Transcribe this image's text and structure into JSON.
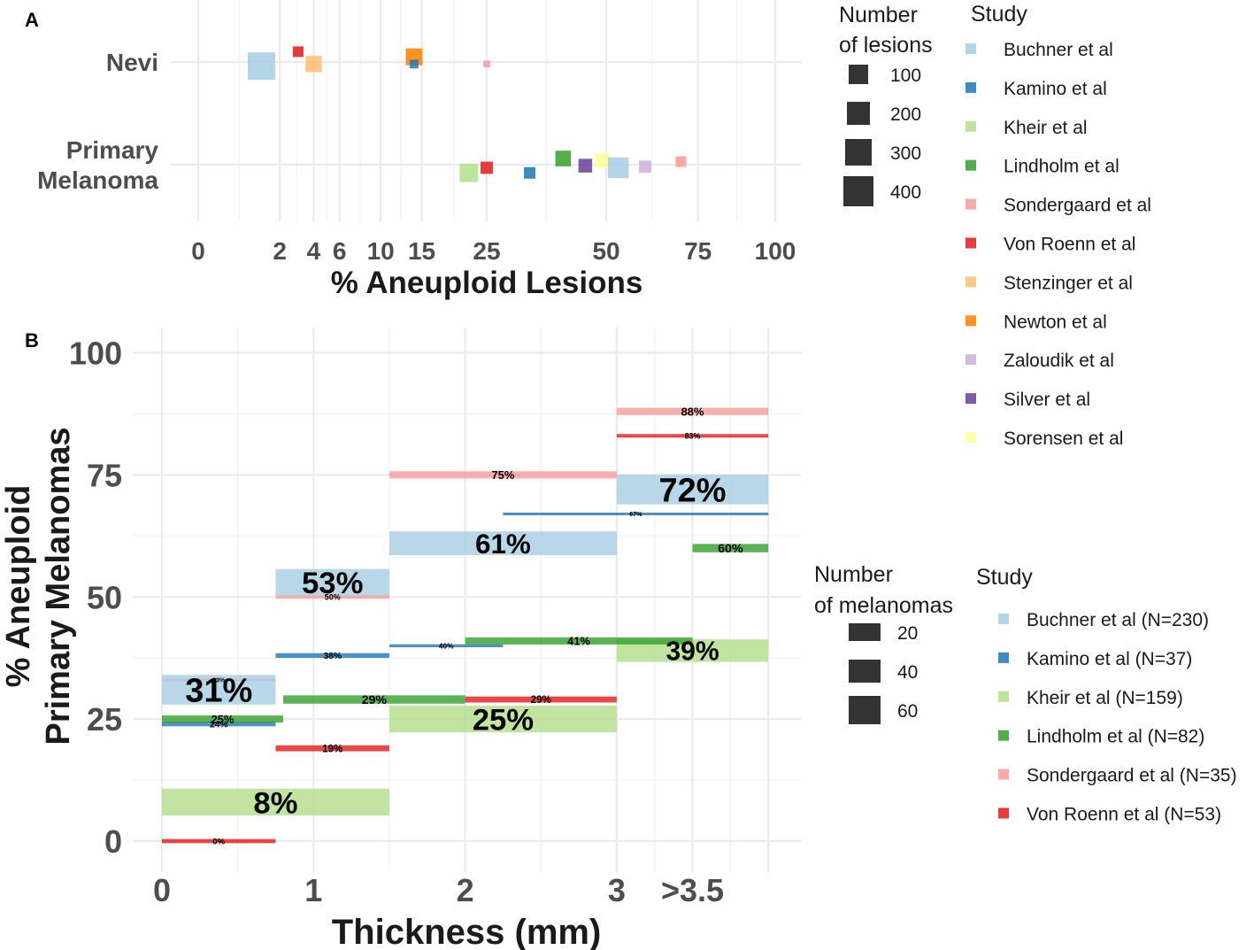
{
  "chart_data": [
    {
      "panel": "A",
      "type": "scatter",
      "xlabel": "% Aneuploid Lesions",
      "ylabel": "",
      "x_scale": "sqrt",
      "xlim": [
        0,
        100
      ],
      "x_ticks": [
        0,
        2,
        4,
        6,
        10,
        15,
        25,
        50,
        75,
        100
      ],
      "x_tick_labels": [
        "0",
        "2",
        "4",
        "6",
        "10",
        "15",
        "25",
        "50",
        "75",
        "100"
      ],
      "categories": [
        "Nevi",
        "Primary Melanoma"
      ],
      "category_labels": [
        [
          "Nevi"
        ],
        [
          "Primary",
          "Melanoma"
        ]
      ],
      "size_legend": {
        "title": [
          "Number",
          "of lesions"
        ],
        "values": [
          100,
          200,
          300,
          400
        ],
        "labels": [
          "100",
          "200",
          "300",
          "400"
        ]
      },
      "color_legend": {
        "title": "Study",
        "items": [
          {
            "name": "Buchner et al",
            "color": "#a6cee3"
          },
          {
            "name": "Kamino et al",
            "color": "#1f78b4"
          },
          {
            "name": "Kheir et al",
            "color": "#b2df8a"
          },
          {
            "name": "Lindholm et al",
            "color": "#33a02c"
          },
          {
            "name": "Sondergaard et al",
            "color": "#fb9a99"
          },
          {
            "name": "Von Roenn et al",
            "color": "#e31a1c"
          },
          {
            "name": "Stenzinger et al",
            "color": "#fdbf6f"
          },
          {
            "name": "Newton et al",
            "color": "#ff7f00"
          },
          {
            "name": "Zaloudik et al",
            "color": "#cab2d6"
          },
          {
            "name": "Silver et al",
            "color": "#6a3d9a"
          },
          {
            "name": "Sorensen et al",
            "color": "#ffff99"
          }
        ]
      },
      "points": [
        {
          "study": "Buchner et al",
          "category": "Nevi",
          "x": 1.2,
          "n": 400,
          "offset": -0.04
        },
        {
          "study": "Von Roenn et al",
          "category": "Nevi",
          "x": 3.0,
          "n": 60,
          "offset": 0.1
        },
        {
          "study": "Stenzinger et al",
          "category": "Nevi",
          "x": 4.0,
          "n": 140,
          "offset": -0.02
        },
        {
          "study": "Newton et al",
          "category": "Nevi",
          "x": 14.0,
          "n": 150,
          "offset": 0.05
        },
        {
          "study": "Kamino et al",
          "category": "Nevi",
          "x": 14.0,
          "n": 40,
          "offset": -0.02
        },
        {
          "study": "Sondergaard et al",
          "category": "Nevi",
          "x": 25.0,
          "n": 25,
          "offset": -0.02
        },
        {
          "study": "Kheir et al",
          "category": "Primary Melanoma",
          "x": 22.0,
          "n": 180,
          "offset": -0.08
        },
        {
          "study": "Von Roenn et al",
          "category": "Primary Melanoma",
          "x": 25.0,
          "n": 80,
          "offset": -0.03
        },
        {
          "study": "Kamino et al",
          "category": "Primary Melanoma",
          "x": 33.0,
          "n": 70,
          "offset": -0.08
        },
        {
          "study": "Lindholm et al",
          "category": "Primary Melanoma",
          "x": 40.0,
          "n": 130,
          "offset": 0.06
        },
        {
          "study": "Silver et al",
          "category": "Primary Melanoma",
          "x": 45.0,
          "n": 100,
          "offset": -0.01
        },
        {
          "study": "Sorensen et al",
          "category": "Primary Melanoma",
          "x": 49.0,
          "n": 110,
          "offset": 0.04
        },
        {
          "study": "Buchner et al",
          "category": "Primary Melanoma",
          "x": 53.0,
          "n": 230,
          "offset": -0.03
        },
        {
          "study": "Zaloudik et al",
          "category": "Primary Melanoma",
          "x": 60.0,
          "n": 80,
          "offset": -0.02
        },
        {
          "study": "Sondergaard et al",
          "category": "Primary Melanoma",
          "x": 70.0,
          "n": 60,
          "offset": 0.03
        }
      ]
    },
    {
      "panel": "B",
      "type": "bar",
      "xlabel": "Thickness (mm)",
      "ylabel": [
        "% Aneuploid",
        "Primary Melanomas"
      ],
      "xlim": [
        0,
        4
      ],
      "ylim": [
        -5,
        105
      ],
      "x_ticks": [
        0,
        1,
        2,
        3,
        3.5
      ],
      "x_tick_labels": [
        "0",
        "1",
        "2",
        "3",
        ">3.5"
      ],
      "y_ticks": [
        0,
        25,
        50,
        75,
        100
      ],
      "y_tick_labels": [
        "0",
        "25",
        "50",
        "75",
        "100"
      ],
      "size_legend": {
        "title": [
          "Number",
          "of melanomas"
        ],
        "values": [
          20,
          40,
          60
        ],
        "labels": [
          "20",
          "40",
          "60"
        ]
      },
      "color_legend": {
        "title": "Study",
        "items": [
          {
            "name": "Buchner et al (N=230)",
            "color": "#a6cee3"
          },
          {
            "name": "Kamino et al (N=37)",
            "color": "#1f78b4"
          },
          {
            "name": "Kheir et al (N=159)",
            "color": "#b2df8a"
          },
          {
            "name": "Lindholm et al (N=82)",
            "color": "#33a02c"
          },
          {
            "name": "Sondergaard et al (N=35)",
            "color": "#fb9a99"
          },
          {
            "name": "Von Roenn et al (N=53)",
            "color": "#e31a1c"
          }
        ]
      },
      "segments": [
        {
          "study": "Von Roenn et al",
          "x0": 0,
          "x1": 0.75,
          "value": 0,
          "label": "0%",
          "n": 7
        },
        {
          "study": "Von Roenn et al",
          "x0": 0.75,
          "x1": 1.5,
          "value": 19,
          "label": "19%",
          "n": 10
        },
        {
          "study": "Von Roenn et al",
          "x0": 2,
          "x1": 3,
          "value": 29,
          "label": "29%",
          "n": 10
        },
        {
          "study": "Von Roenn et al",
          "x0": 3,
          "x1": 4,
          "value": 83,
          "label": "83%",
          "n": 6
        },
        {
          "study": "Kheir et al",
          "x0": 0,
          "x1": 1.5,
          "value": 8,
          "label": "8%",
          "n": 45
        },
        {
          "study": "Kheir et al",
          "x0": 1.5,
          "x1": 3,
          "value": 25,
          "label": "25%",
          "n": 45
        },
        {
          "study": "Kheir et al",
          "x0": 3,
          "x1": 4,
          "value": 39,
          "label": "39%",
          "n": 38
        },
        {
          "study": "Kamino et al",
          "x0": 0,
          "x1": 0.75,
          "value": 24,
          "label": "24%",
          "n": 8
        },
        {
          "study": "Kamino et al",
          "x0": 0.75,
          "x1": 1.5,
          "value": 38,
          "label": "38%",
          "n": 8
        },
        {
          "study": "Kamino et al",
          "x0": 1.5,
          "x1": 2.25,
          "value": 40,
          "label": "40%",
          "n": 5
        },
        {
          "study": "Kamino et al",
          "x0": 2.25,
          "x1": 4,
          "value": 67,
          "label": "67%",
          "n": 3
        },
        {
          "study": "Lindholm et al",
          "x0": 0,
          "x1": 0.8,
          "value": 25,
          "label": "25%",
          "n": 12
        },
        {
          "study": "Lindholm et al",
          "x0": 0.8,
          "x1": 2,
          "value": 29,
          "label": "29%",
          "n": 14
        },
        {
          "study": "Lindholm et al",
          "x0": 2,
          "x1": 3.5,
          "value": 41,
          "label": "41%",
          "n": 12
        },
        {
          "study": "Lindholm et al",
          "x0": 3.5,
          "x1": 4,
          "value": 60,
          "label": "60%",
          "n": 14
        },
        {
          "study": "Sondergaard et al",
          "x0": 0,
          "x1": 0.75,
          "value": 33,
          "label": "33%",
          "n": 3
        },
        {
          "study": "Sondergaard et al",
          "x0": 0.75,
          "x1": 1.5,
          "value": 50,
          "label": "50%",
          "n": 6
        },
        {
          "study": "Sondergaard et al",
          "x0": 1.5,
          "x1": 3,
          "value": 75,
          "label": "75%",
          "n": 12
        },
        {
          "study": "Sondergaard et al",
          "x0": 3,
          "x1": 4,
          "value": 88,
          "label": "88%",
          "n": 12
        },
        {
          "study": "Buchner et al",
          "x0": 0,
          "x1": 0.75,
          "value": 31,
          "label": "31%",
          "n": 50
        },
        {
          "study": "Buchner et al",
          "x0": 0.75,
          "x1": 1.5,
          "value": 53,
          "label": "53%",
          "n": 45
        },
        {
          "study": "Buchner et al",
          "x0": 1.5,
          "x1": 3,
          "value": 61,
          "label": "61%",
          "n": 40
        },
        {
          "study": "Buchner et al",
          "x0": 3,
          "x1": 4,
          "value": 72,
          "label": "72%",
          "n": 50
        }
      ]
    }
  ]
}
